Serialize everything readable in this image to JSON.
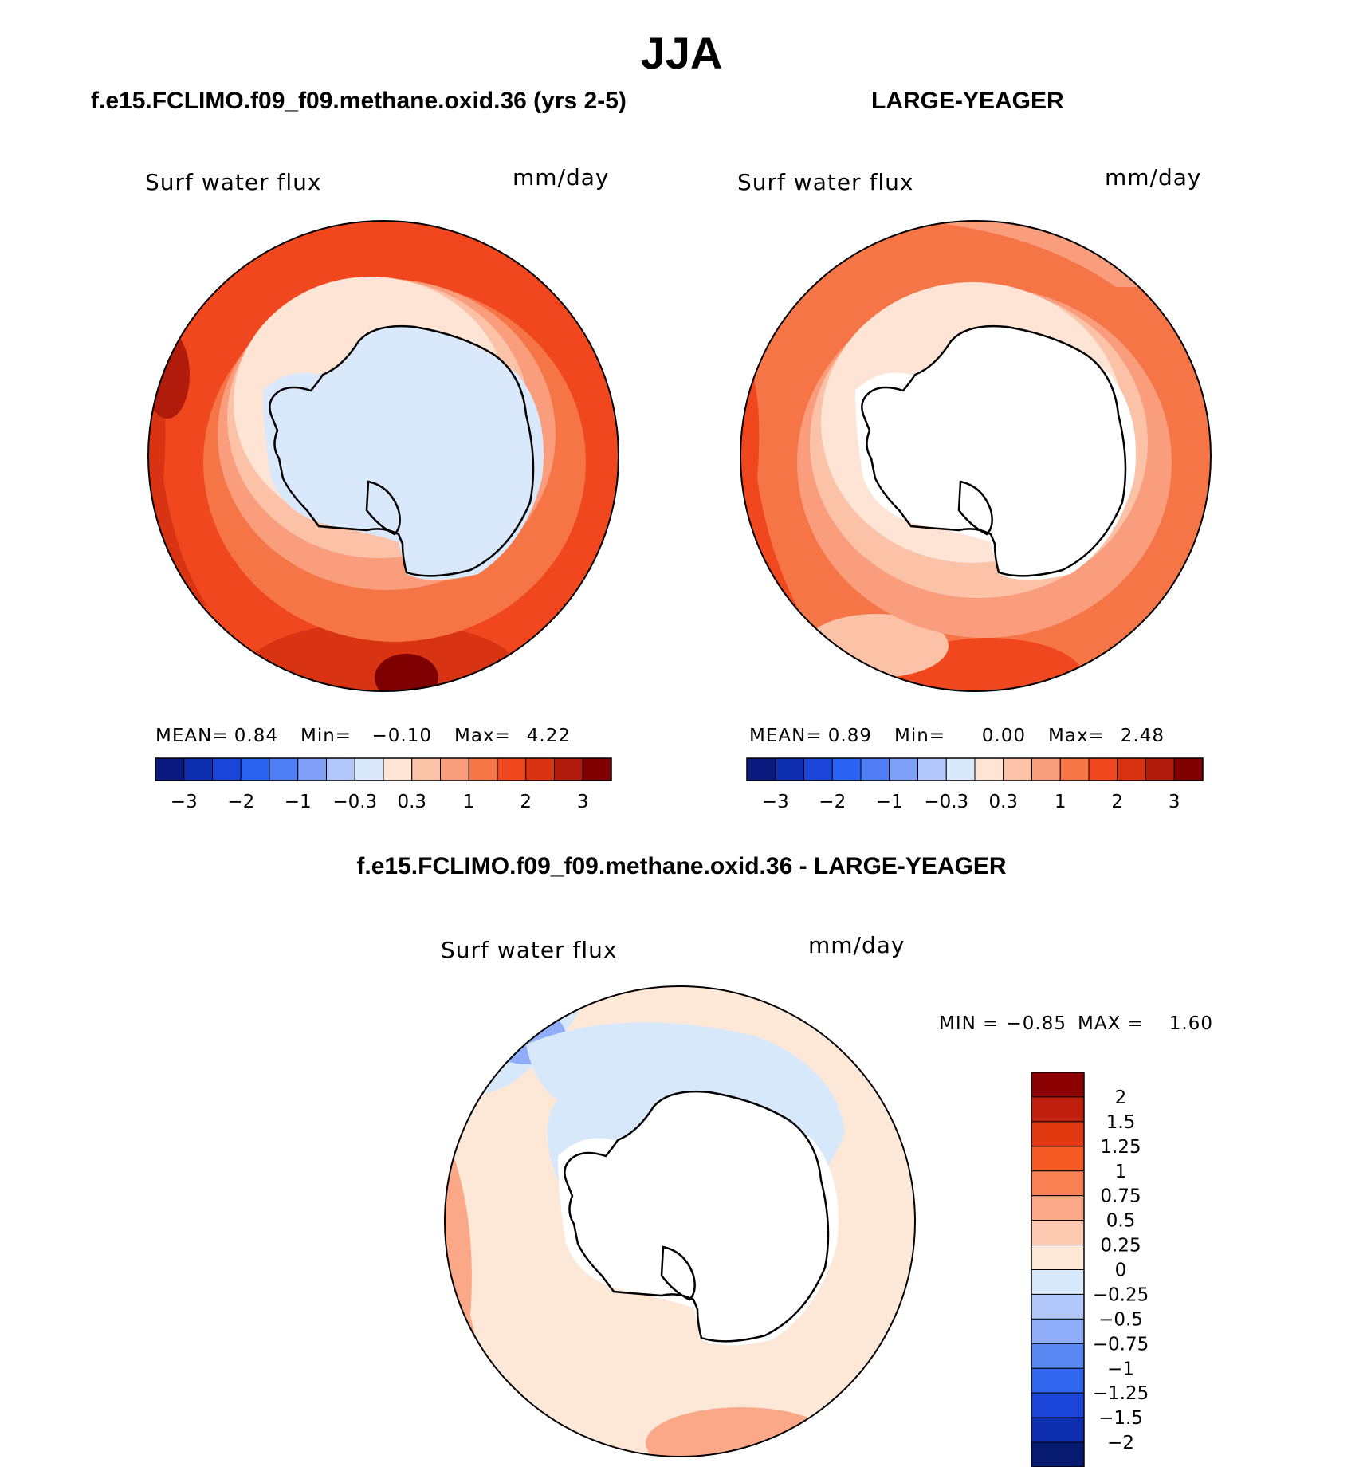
{
  "title": "JJA",
  "panels": {
    "left": {
      "heading": "f.e15.FCLIMO.f09_f09.methane.oxid.36 (yrs 2-5)",
      "variable": "Surf  water  flux",
      "units": "mm/day",
      "mean_label": "MEAN=",
      "mean": "0.84",
      "min_label": "Min=",
      "min": "−0.10",
      "max_label": "Max=",
      "max": "4.22"
    },
    "right": {
      "heading": "LARGE-YEAGER",
      "variable": "Surf  water  flux",
      "units": "mm/day",
      "mean_label": "MEAN=",
      "mean": "0.89",
      "min_label": "Min=",
      "min": "0.00",
      "max_label": "Max=",
      "max": "2.48"
    },
    "diff": {
      "heading": "f.e15.FCLIMO.f09_f09.methane.oxid.36 - LARGE-YEAGER",
      "variable": "Surf  water  flux",
      "units": "mm/day",
      "min_label": "MIN =",
      "min": "−0.85",
      "max_label": "MAX =",
      "max": "1.60"
    }
  },
  "chart_data": [
    {
      "type": "heatmap",
      "subtype": "south-polar-stereographic contour map",
      "title": "f.e15.FCLIMO.f09_f09.methane.oxid.36 (yrs 2-5)",
      "variable": "Surf water flux",
      "units": "mm/day",
      "mean": 0.84,
      "min": -0.1,
      "max": 4.22,
      "colorbar_colors": [
        "#0a1a7e",
        "#0d2fb0",
        "#1a45d8",
        "#2a62f2",
        "#4f7ef5",
        "#809ff7",
        "#b3c8fa",
        "#d9e8fb",
        "#fde4d4",
        "#fcc2a8",
        "#f99d7d",
        "#f67547",
        "#f0471e",
        "#d83313",
        "#b01b0b",
        "#7f0000"
      ],
      "colorbar_ticks": [
        "−3",
        "−2",
        "−1",
        "−0.3",
        "0.3",
        "1",
        "2",
        "3"
      ]
    },
    {
      "type": "heatmap",
      "subtype": "south-polar-stereographic contour map",
      "title": "LARGE-YEAGER",
      "variable": "Surf water flux",
      "units": "mm/day",
      "mean": 0.89,
      "min": 0.0,
      "max": 2.48,
      "colorbar_colors": [
        "#0a1a7e",
        "#0d2fb0",
        "#1a45d8",
        "#2a62f2",
        "#4f7ef5",
        "#809ff7",
        "#b3c8fa",
        "#d9e8fb",
        "#fde4d4",
        "#fcc2a8",
        "#f99d7d",
        "#f67547",
        "#f0471e",
        "#d83313",
        "#b01b0b",
        "#7f0000"
      ],
      "colorbar_ticks": [
        "−3",
        "−2",
        "−1",
        "−0.3",
        "0.3",
        "1",
        "2",
        "3"
      ]
    },
    {
      "type": "heatmap",
      "subtype": "south-polar-stereographic contour map (difference)",
      "title": "f.e15.FCLIMO.f09_f09.methane.oxid.36 - LARGE-YEAGER",
      "variable": "Surf water flux",
      "units": "mm/day",
      "min": -0.85,
      "max": 1.6,
      "colorbar_colors_top_to_bottom": [
        "#8b0000",
        "#c0200d",
        "#e0390f",
        "#f55a25",
        "#f98052",
        "#fba888",
        "#fdc9b0",
        "#fde8d8",
        "#d8e8fb",
        "#b3c8fa",
        "#8fadf8",
        "#5a88f3",
        "#3065ee",
        "#1a45d8",
        "#0d2fb0",
        "#061a70"
      ],
      "colorbar_ticks_top_to_bottom": [
        "2",
        "1.5",
        "1.25",
        "1",
        "0.75",
        "0.5",
        "0.25",
        "0",
        "−0.25",
        "−0.5",
        "−0.75",
        "−1",
        "−1.25",
        "−1.5",
        "−2"
      ]
    }
  ]
}
